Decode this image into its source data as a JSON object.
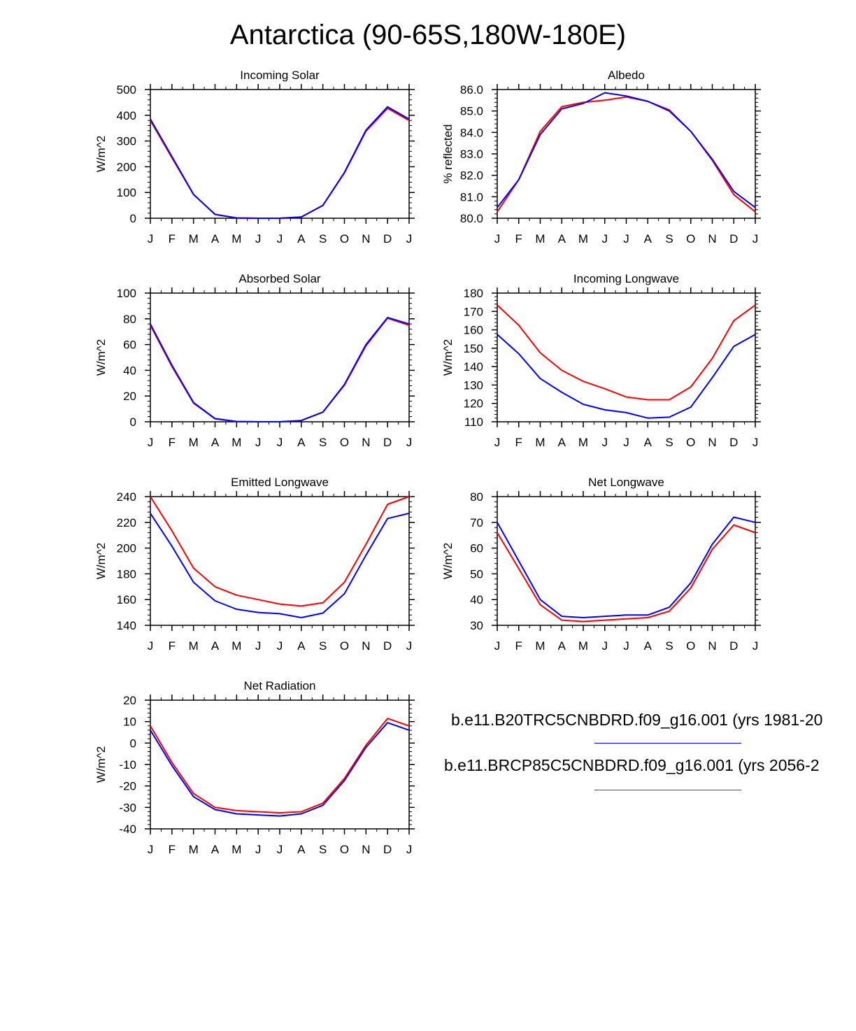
{
  "title": "Antarctica (90-65S,180W-180E)",
  "colors": {
    "series_1": "#0000ff",
    "series_2": "#ff0000",
    "axis": "#000000"
  },
  "legend": [
    {
      "label": "b.e11.B20TRC5CNBDRD.f09_g16.001 (yrs 1981-20",
      "color": "#0000ff"
    },
    {
      "label": "b.e11.BRCP85C5CNBDRD.f09_g16.001 (yrs 2056-2",
      "color": "#ff0000"
    }
  ],
  "chart_data": [
    {
      "id": "incoming-solar",
      "type": "line",
      "title": "Incoming Solar",
      "ylabel": "W/m^2",
      "categories": [
        "J",
        "F",
        "M",
        "A",
        "M",
        "J",
        "J",
        "A",
        "S",
        "O",
        "N",
        "D",
        "J"
      ],
      "ylim": [
        0,
        500
      ],
      "yticks": [
        "0",
        "100",
        "200",
        "300",
        "400",
        "500"
      ],
      "series": [
        {
          "name": "b.e11.B20TRC5CNBDRD.f09_g16.001 (yrs 1981-20",
          "color": "#0000ff",
          "values": [
            385,
            240,
            93,
            15,
            1,
            0,
            0,
            5,
            50,
            178,
            342,
            433,
            385
          ]
        },
        {
          "name": "b.e11.BRCP85C5CNBDRD.f09_g16.001 (yrs 2056-2",
          "color": "#ff0000",
          "values": [
            380,
            235,
            92,
            15,
            1,
            0,
            0,
            5,
            50,
            176,
            338,
            427,
            380
          ]
        }
      ]
    },
    {
      "id": "albedo",
      "type": "line",
      "title": "Albedo",
      "ylabel": "% reflected",
      "categories": [
        "J",
        "F",
        "M",
        "A",
        "M",
        "J",
        "J",
        "A",
        "S",
        "O",
        "N",
        "D",
        "J"
      ],
      "ylim": [
        80,
        86
      ],
      "yticks": [
        "80.0",
        "81.0",
        "82.0",
        "83.0",
        "84.0",
        "85.0",
        "86.0"
      ],
      "series": [
        {
          "name": "b.e11.B20TRC5CNBDRD.f09_g16.001 (yrs 1981-20",
          "color": "#0000ff",
          "values": [
            80.5,
            81.8,
            83.9,
            85.1,
            85.35,
            85.85,
            85.7,
            85.45,
            85.0,
            84.05,
            82.75,
            81.25,
            80.5
          ]
        },
        {
          "name": "b.e11.BRCP85C5CNBDRD.f09_g16.001 (yrs 2056-2",
          "color": "#ff0000",
          "values": [
            80.3,
            81.8,
            84.05,
            85.2,
            85.4,
            85.5,
            85.65,
            85.45,
            85.05,
            84.05,
            82.7,
            81.1,
            80.3
          ]
        }
      ]
    },
    {
      "id": "absorbed-solar",
      "type": "line",
      "title": "Absorbed Solar",
      "ylabel": "W/m^2",
      "categories": [
        "J",
        "F",
        "M",
        "A",
        "M",
        "J",
        "J",
        "A",
        "S",
        "O",
        "N",
        "D",
        "J"
      ],
      "ylim": [
        0,
        100
      ],
      "yticks": [
        "0",
        "20",
        "40",
        "60",
        "80",
        "100"
      ],
      "series": [
        {
          "name": "b.e11.B20TRC5CNBDRD.f09_g16.001 (yrs 1981-20",
          "color": "#0000ff",
          "values": [
            76,
            44,
            15,
            2.5,
            0.2,
            0,
            0,
            1,
            7.5,
            29,
            60,
            81,
            76
          ]
        },
        {
          "name": "b.e11.BRCP85C5CNBDRD.f09_g16.001 (yrs 2056-2",
          "color": "#ff0000",
          "values": [
            75,
            43,
            14.5,
            2.3,
            0.2,
            0,
            0,
            1,
            7.5,
            28.5,
            59,
            80.5,
            75
          ]
        }
      ]
    },
    {
      "id": "incoming-longwave",
      "type": "line",
      "title": "Incoming Longwave",
      "ylabel": "W/m^2",
      "categories": [
        "J",
        "F",
        "M",
        "A",
        "M",
        "J",
        "J",
        "A",
        "S",
        "O",
        "N",
        "D",
        "J"
      ],
      "ylim": [
        110,
        180
      ],
      "yticks": [
        "110",
        "120",
        "130",
        "140",
        "150",
        "160",
        "170",
        "180"
      ],
      "series": [
        {
          "name": "b.e11.B20TRC5CNBDRD.f09_g16.001 (yrs 1981-20",
          "color": "#0000ff",
          "values": [
            157.5,
            147,
            133.5,
            126,
            119.5,
            116.5,
            115,
            112,
            112.5,
            118,
            134,
            151,
            157.5
          ]
        },
        {
          "name": "b.e11.BRCP85C5CNBDRD.f09_g16.001 (yrs 2056-2",
          "color": "#ff0000",
          "values": [
            173.5,
            162.5,
            147.5,
            138,
            132,
            128,
            123.5,
            122,
            122,
            129,
            144.5,
            165,
            173.5
          ]
        }
      ]
    },
    {
      "id": "emitted-longwave",
      "type": "line",
      "title": "Emitted Longwave",
      "ylabel": "W/m^2",
      "categories": [
        "J",
        "F",
        "M",
        "A",
        "M",
        "J",
        "J",
        "A",
        "S",
        "O",
        "N",
        "D",
        "J"
      ],
      "ylim": [
        140,
        240
      ],
      "yticks": [
        "140",
        "160",
        "180",
        "200",
        "220",
        "240"
      ],
      "series": [
        {
          "name": "b.e11.B20TRC5CNBDRD.f09_g16.001 (yrs 1981-20",
          "color": "#0000ff",
          "values": [
            227,
            201.5,
            173.5,
            159,
            152.5,
            150,
            149,
            146,
            149.5,
            164.5,
            194.5,
            223,
            227
          ]
        },
        {
          "name": "b.e11.BRCP85C5CNBDRD.f09_g16.001 (yrs 2056-2",
          "color": "#ff0000",
          "values": [
            240,
            213.5,
            184.5,
            170,
            163.5,
            160,
            156.5,
            155,
            157.5,
            173.5,
            203,
            234,
            240
          ]
        }
      ]
    },
    {
      "id": "net-longwave",
      "type": "line",
      "title": "Net Longwave",
      "ylabel": "W/m^2",
      "categories": [
        "J",
        "F",
        "M",
        "A",
        "M",
        "J",
        "J",
        "A",
        "S",
        "O",
        "N",
        "D",
        "J"
      ],
      "ylim": [
        30,
        80
      ],
      "yticks": [
        "30",
        "40",
        "50",
        "60",
        "70",
        "80"
      ],
      "series": [
        {
          "name": "b.e11.B20TRC5CNBDRD.f09_g16.001 (yrs 1981-20",
          "color": "#0000ff",
          "values": [
            70,
            55,
            40,
            33.5,
            33,
            33.5,
            34,
            34,
            37,
            46.5,
            61.5,
            72,
            70
          ]
        },
        {
          "name": "b.e11.BRCP85C5CNBDRD.f09_g16.001 (yrs 2056-2",
          "color": "#ff0000",
          "values": [
            66,
            52,
            38,
            32,
            31.5,
            32,
            32.5,
            33,
            35.5,
            44.5,
            59.5,
            69,
            66
          ]
        }
      ]
    },
    {
      "id": "net-radiation",
      "type": "line",
      "title": "Net Radiation",
      "ylabel": "W/m^2",
      "categories": [
        "J",
        "F",
        "M",
        "A",
        "M",
        "J",
        "J",
        "A",
        "S",
        "O",
        "N",
        "D",
        "J"
      ],
      "ylim": [
        -40,
        20
      ],
      "yticks": [
        "-40",
        "-30",
        "-20",
        "-10",
        "0",
        "10",
        "20"
      ],
      "series": [
        {
          "name": "b.e11.B20TRC5CNBDRD.f09_g16.001 (yrs 1981-20",
          "color": "#0000ff",
          "values": [
            6,
            -10.5,
            -25,
            -31,
            -33,
            -33.5,
            -34,
            -33,
            -29,
            -17.5,
            -2,
            9.5,
            6
          ]
        },
        {
          "name": "b.e11.BRCP85C5CNBDRD.f09_g16.001 (yrs 2056-2",
          "color": "#ff0000",
          "values": [
            8,
            -9,
            -23.5,
            -30,
            -31.5,
            -32,
            -32.5,
            -32,
            -28,
            -16.5,
            -1,
            11.5,
            8
          ]
        }
      ]
    }
  ]
}
